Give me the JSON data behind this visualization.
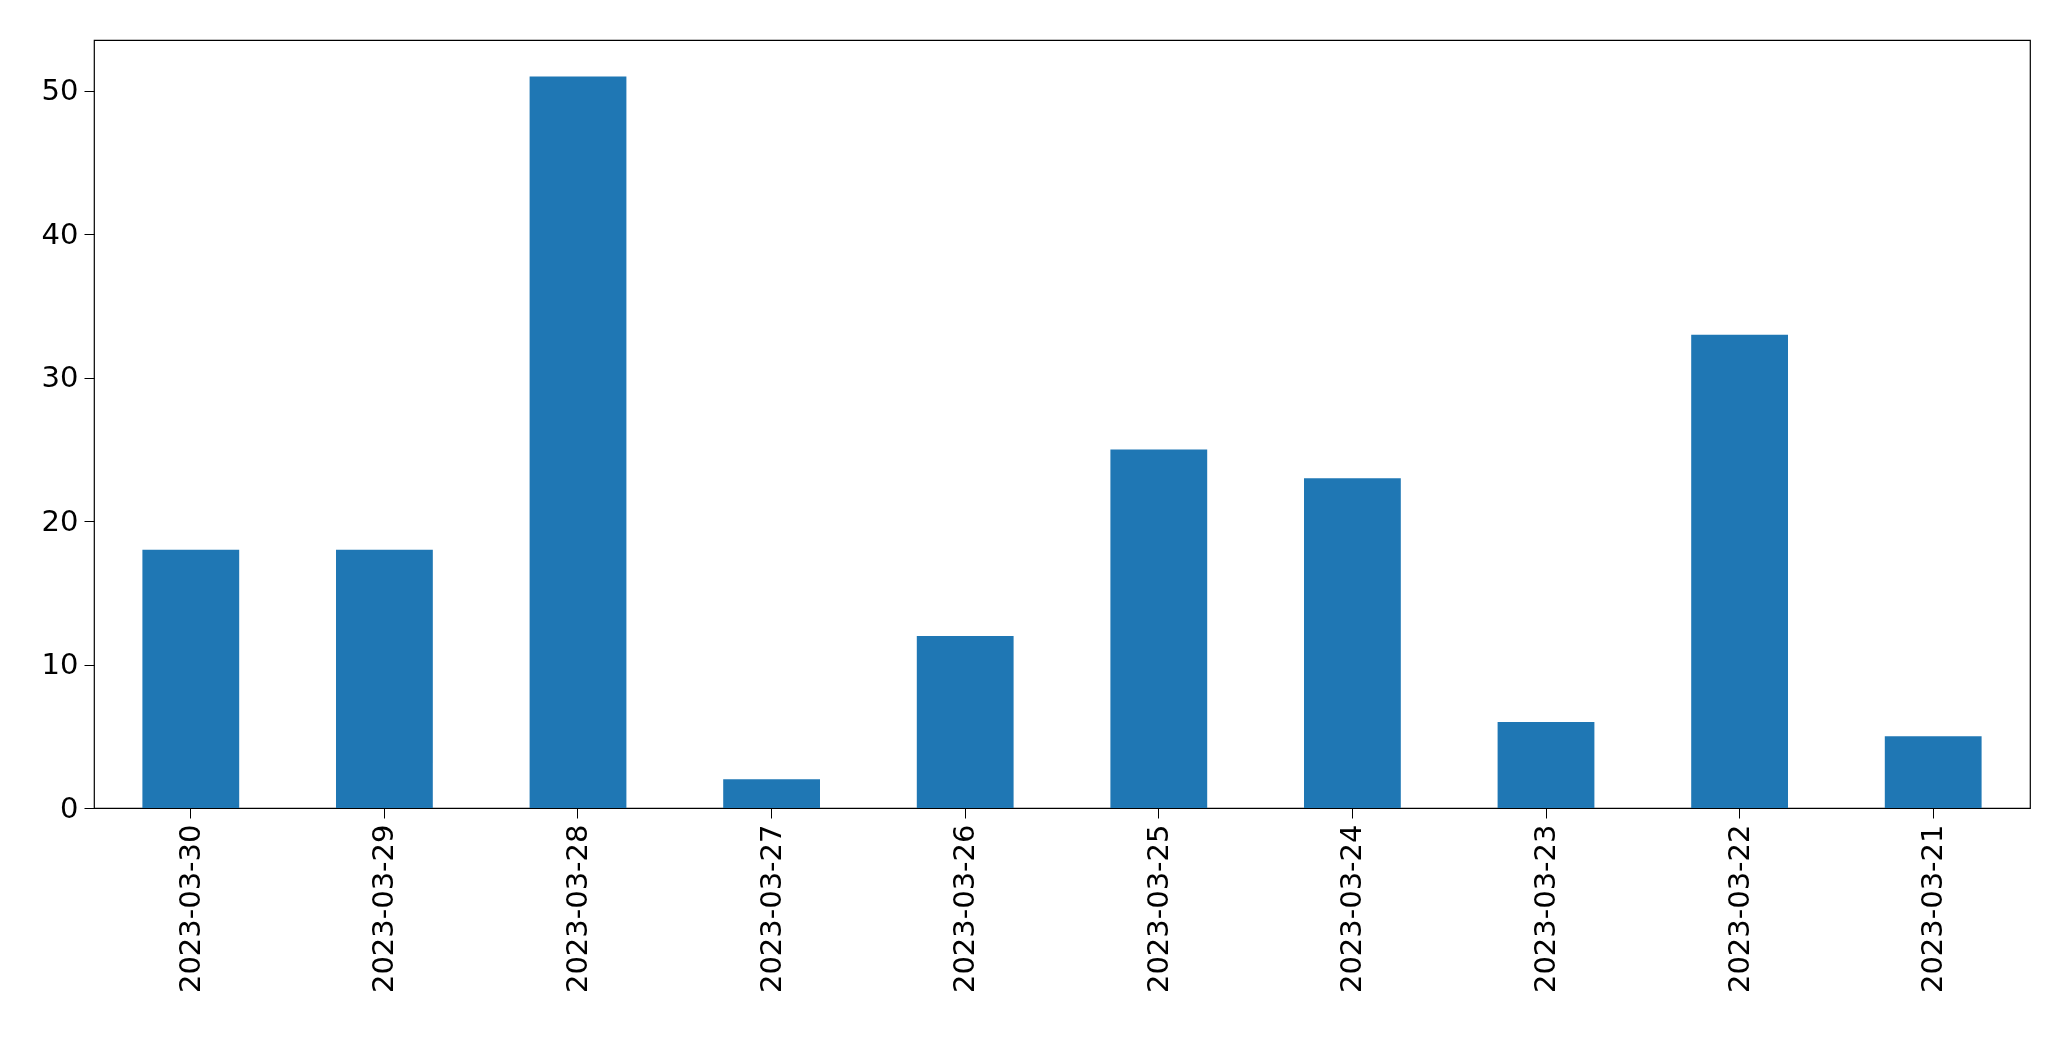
{
  "chart_data": {
    "type": "bar",
    "categories": [
      "2023-03-30",
      "2023-03-29",
      "2023-03-28",
      "2023-03-27",
      "2023-03-26",
      "2023-03-25",
      "2023-03-24",
      "2023-03-23",
      "2023-03-22",
      "2023-03-21"
    ],
    "values": [
      18,
      18,
      51,
      2,
      12,
      25,
      23,
      6,
      33,
      5
    ],
    "color": "#1f77b4",
    "ylim": [
      0,
      53.55
    ],
    "yticks": [
      0,
      10,
      20,
      30,
      40,
      50
    ],
    "grid": false
  }
}
